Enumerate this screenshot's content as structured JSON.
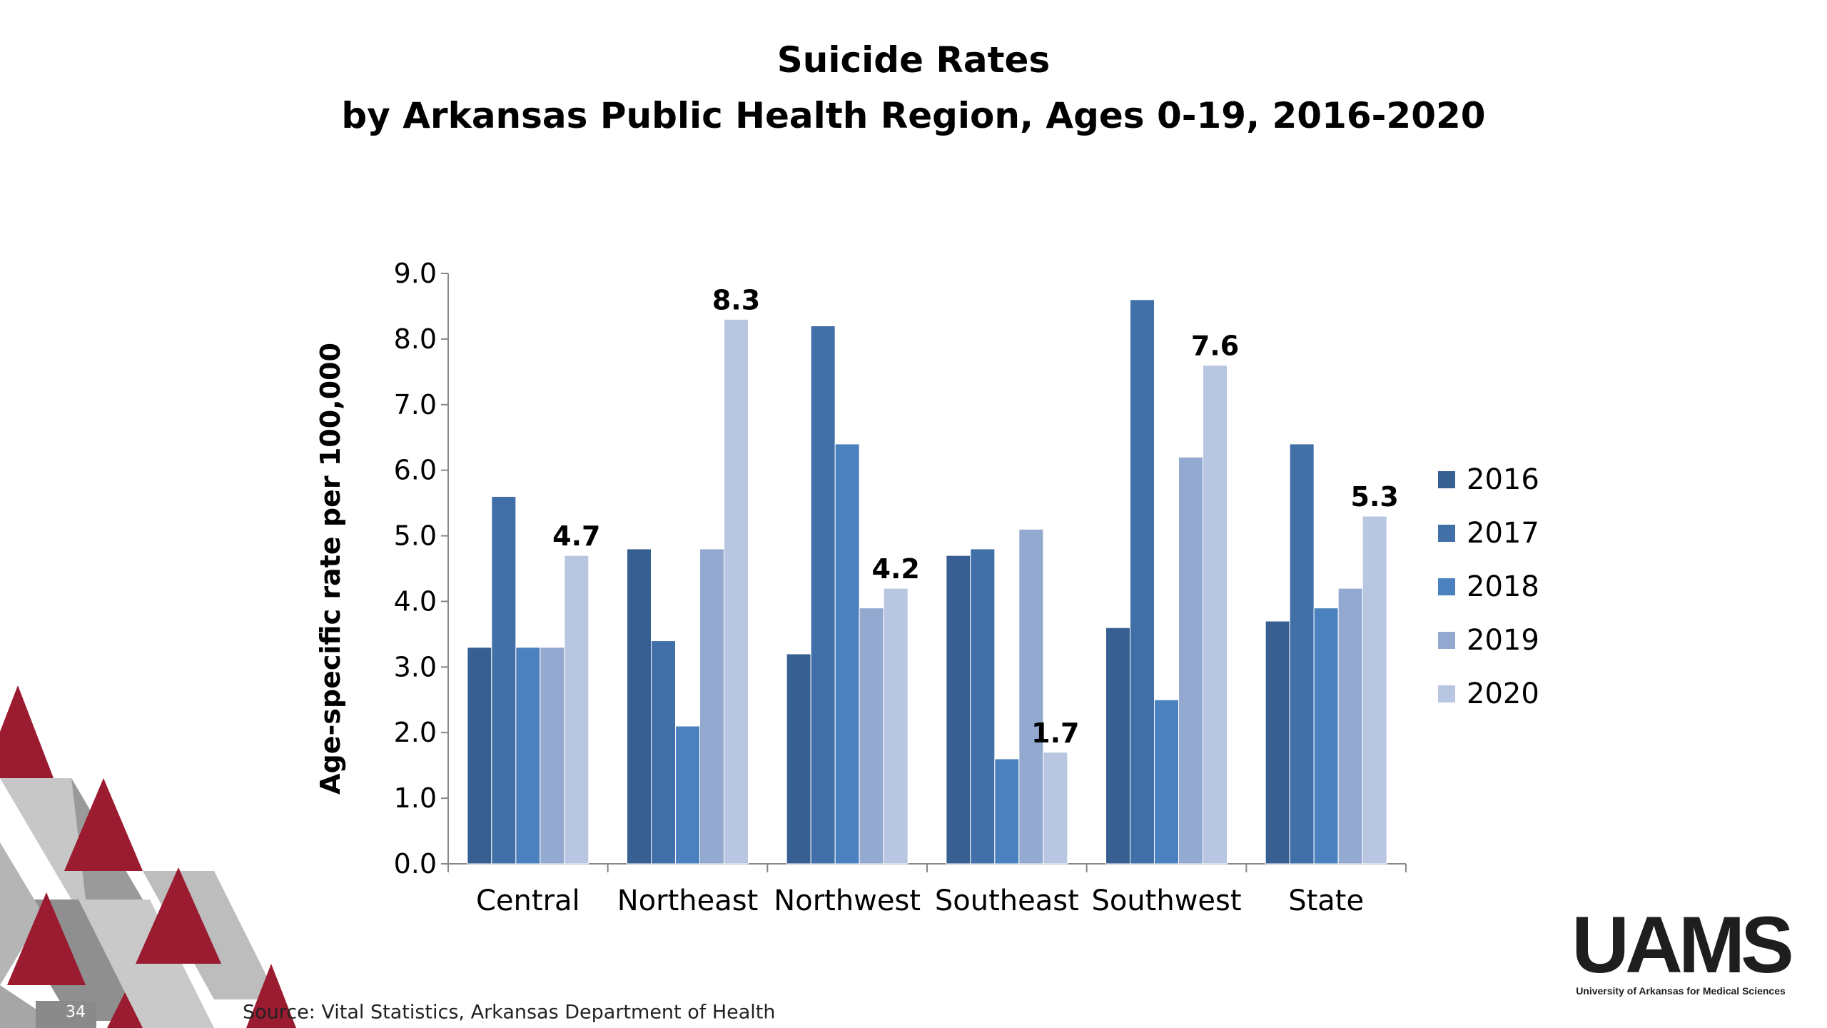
{
  "title": {
    "line1": "Suicide Rates",
    "line2": "by Arkansas Public Health Region, Ages 0-19, 2016-2020"
  },
  "chart_data": {
    "type": "bar",
    "title": "Suicide Rates by Arkansas Public Health Region, Ages 0-19, 2016-2020",
    "ylabel": "Age-specific rate per 100,000",
    "xlabel": "",
    "ylim": [
      0,
      9
    ],
    "yticks": [
      "0.0",
      "1.0",
      "2.0",
      "3.0",
      "4.0",
      "5.0",
      "6.0",
      "7.0",
      "8.0",
      "9.0"
    ],
    "categories": [
      "Central",
      "Northeast",
      "Northwest",
      "Southeast",
      "Southwest",
      "State"
    ],
    "series": [
      {
        "name": "2016",
        "color": "#375f92",
        "values": [
          3.3,
          4.8,
          3.2,
          4.7,
          3.6,
          3.7
        ]
      },
      {
        "name": "2017",
        "color": "#416fa7",
        "values": [
          5.6,
          3.4,
          8.2,
          4.8,
          8.6,
          6.4
        ]
      },
      {
        "name": "2018",
        "color": "#4c81c0",
        "values": [
          3.3,
          2.1,
          6.4,
          1.6,
          2.5,
          3.9
        ]
      },
      {
        "name": "2019",
        "color": "#93a9d0",
        "values": [
          3.3,
          4.8,
          3.9,
          5.1,
          6.2,
          4.2
        ]
      },
      {
        "name": "2020",
        "color": "#b9c6e2",
        "values": [
          4.7,
          8.3,
          4.2,
          1.7,
          7.6,
          5.3
        ]
      }
    ],
    "data_labels": {
      "series": "2020",
      "values": [
        "4.7",
        "8.3",
        "4.2",
        "1.7",
        "7.6",
        "5.3"
      ]
    },
    "legend": "right",
    "grid": false
  },
  "footer": {
    "page_number": "34",
    "source": "Source: Vital Statistics, Arkansas Department of Health"
  },
  "logo": {
    "wordmark": "UAMS",
    "tagline": "University of Arkansas for Medical Sciences",
    "accent_color": "#9b1b30"
  }
}
